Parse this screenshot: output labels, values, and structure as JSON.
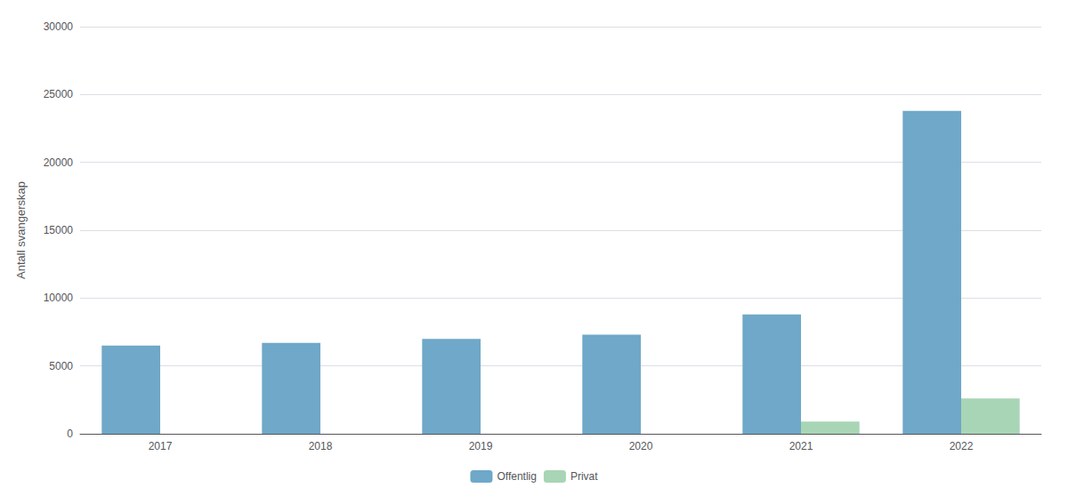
{
  "chart_data": {
    "type": "bar",
    "categories": [
      "2017",
      "2018",
      "2019",
      "2020",
      "2021",
      "2022"
    ],
    "series": [
      {
        "name": "Offentlig",
        "color": "#6FA8C8",
        "values": [
          6500,
          6700,
          7000,
          7300,
          8800,
          23800
        ]
      },
      {
        "name": "Privat",
        "color": "#A8D5B5",
        "values": [
          0,
          0,
          0,
          0,
          900,
          2600
        ]
      }
    ],
    "ylabel": "Antall svangerskap",
    "ylim": [
      0,
      30000
    ],
    "yticks": [
      0,
      5000,
      10000,
      15000,
      20000,
      25000,
      30000
    ],
    "grid": true,
    "legend": "bottom"
  }
}
